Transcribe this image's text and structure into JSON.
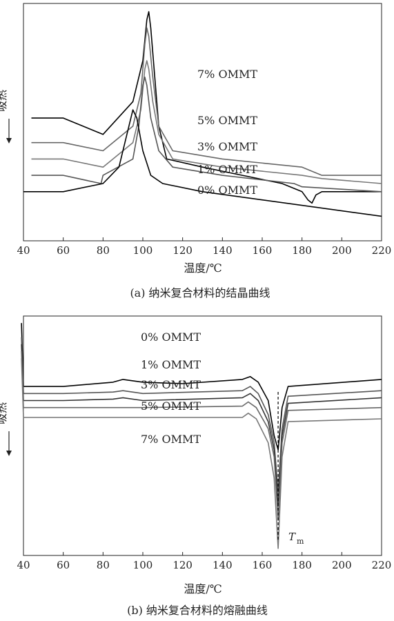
{
  "chart_data": [
    {
      "type": "line",
      "caption": "(a) 纳米复合材料的结晶曲线",
      "xlabel": "温度/℃",
      "ylabel": "吸热",
      "xlim": [
        40,
        220
      ],
      "xticks": [
        40,
        60,
        80,
        100,
        120,
        140,
        160,
        180,
        200,
        220
      ],
      "grid": false,
      "series": [
        {
          "name": "7% OMMT",
          "color": "#000000",
          "points": [
            [
              44,
              0.935
            ],
            [
              60,
              0.935
            ],
            [
              80,
              0.925
            ],
            [
              95,
              0.945
            ],
            [
              100,
              0.97
            ],
            [
              102,
              0.995
            ],
            [
              103,
              1.0
            ],
            [
              104,
              0.99
            ],
            [
              106,
              0.96
            ],
            [
              108,
              0.93
            ],
            [
              112,
              0.91
            ],
            [
              130,
              0.905
            ],
            [
              150,
              0.9
            ],
            [
              170,
              0.895
            ],
            [
              180,
              0.89
            ],
            [
              183,
              0.885
            ],
            [
              185,
              0.883
            ],
            [
              187,
              0.888
            ],
            [
              190,
              0.89
            ],
            [
              220,
              0.89
            ]
          ]
        },
        {
          "name": "5% OMMT",
          "color": "#666666",
          "points": [
            [
              44,
              0.92
            ],
            [
              60,
              0.92
            ],
            [
              80,
              0.915
            ],
            [
              95,
              0.93
            ],
            [
              99,
              0.95
            ],
            [
              101,
              0.98
            ],
            [
              102,
              0.99
            ],
            [
              103,
              0.985
            ],
            [
              105,
              0.96
            ],
            [
              108,
              0.93
            ],
            [
              115,
              0.915
            ],
            [
              140,
              0.91
            ],
            [
              180,
              0.905
            ],
            [
              190,
              0.9
            ],
            [
              220,
              0.9
            ]
          ]
        },
        {
          "name": "3% OMMT",
          "color": "#777777",
          "points": [
            [
              44,
              0.91
            ],
            [
              60,
              0.91
            ],
            [
              80,
              0.905
            ],
            [
              95,
              0.92
            ],
            [
              99,
              0.94
            ],
            [
              101,
              0.965
            ],
            [
              102,
              0.97
            ],
            [
              103,
              0.965
            ],
            [
              105,
              0.945
            ],
            [
              108,
              0.925
            ],
            [
              115,
              0.91
            ],
            [
              140,
              0.905
            ],
            [
              180,
              0.9
            ],
            [
              190,
              0.898
            ],
            [
              220,
              0.895
            ]
          ]
        },
        {
          "name": "1% OMMT",
          "color": "#555555",
          "points": [
            [
              44,
              0.9
            ],
            [
              60,
              0.9
            ],
            [
              79,
              0.895
            ],
            [
              80,
              0.9
            ],
            [
              95,
              0.91
            ],
            [
              98,
              0.93
            ],
            [
              100,
              0.955
            ],
            [
              101,
              0.96
            ],
            [
              102,
              0.955
            ],
            [
              104,
              0.935
            ],
            [
              108,
              0.915
            ],
            [
              115,
              0.905
            ],
            [
              140,
              0.9
            ],
            [
              176,
              0.895
            ],
            [
              180,
              0.893
            ],
            [
              220,
              0.89
            ]
          ]
        },
        {
          "name": "0% OMMT",
          "color": "#000000",
          "points": [
            [
              40,
              0.89
            ],
            [
              60,
              0.89
            ],
            [
              80,
              0.895
            ],
            [
              88,
              0.905
            ],
            [
              92,
              0.925
            ],
            [
              95,
              0.94
            ],
            [
              97,
              0.935
            ],
            [
              100,
              0.915
            ],
            [
              104,
              0.9
            ],
            [
              110,
              0.895
            ],
            [
              130,
              0.89
            ],
            [
              160,
              0.885
            ],
            [
              190,
              0.88
            ],
            [
              220,
              0.875
            ]
          ]
        }
      ]
    },
    {
      "type": "line",
      "caption": "(b) 纳米复合材料的熔融曲线",
      "xlabel": "温度/℃",
      "ylabel": "吸热",
      "xlim": [
        40,
        220
      ],
      "xticks": [
        40,
        60,
        80,
        100,
        120,
        140,
        160,
        180,
        200,
        220
      ],
      "grid": false,
      "annotation": {
        "text": "T",
        "subscript": "m",
        "x": 168
      },
      "series": [
        {
          "name": "0% OMMT",
          "color": "#000000",
          "points": [
            [
              39,
              1.0
            ],
            [
              40,
              0.955
            ],
            [
              45,
              0.955
            ],
            [
              60,
              0.955
            ],
            [
              85,
              0.958
            ],
            [
              90,
              0.96
            ],
            [
              100,
              0.958
            ],
            [
              120,
              0.957
            ],
            [
              150,
              0.96
            ],
            [
              154,
              0.962
            ],
            [
              158,
              0.958
            ],
            [
              163,
              0.945
            ],
            [
              166,
              0.92
            ],
            [
              168,
              0.91
            ],
            [
              170,
              0.94
            ],
            [
              173,
              0.955
            ],
            [
              220,
              0.96
            ]
          ]
        },
        {
          "name": "1% OMMT",
          "color": "#555555",
          "points": [
            [
              39,
              0.99
            ],
            [
              40,
              0.95
            ],
            [
              45,
              0.95
            ],
            [
              60,
              0.95
            ],
            [
              85,
              0.951
            ],
            [
              90,
              0.952
            ],
            [
              100,
              0.95
            ],
            [
              150,
              0.952
            ],
            [
              154,
              0.955
            ],
            [
              158,
              0.95
            ],
            [
              163,
              0.935
            ],
            [
              166,
              0.915
            ],
            [
              168,
              0.88
            ],
            [
              170,
              0.925
            ],
            [
              173,
              0.948
            ],
            [
              220,
              0.952
            ]
          ]
        },
        {
          "name": "3% OMMT",
          "color": "#333333",
          "points": [
            [
              39,
              0.985
            ],
            [
              40,
              0.945
            ],
            [
              45,
              0.945
            ],
            [
              60,
              0.945
            ],
            [
              85,
              0.946
            ],
            [
              90,
              0.947
            ],
            [
              100,
              0.945
            ],
            [
              150,
              0.947
            ],
            [
              154,
              0.95
            ],
            [
              158,
              0.945
            ],
            [
              163,
              0.93
            ],
            [
              166,
              0.91
            ],
            [
              168,
              0.87
            ],
            [
              170,
              0.92
            ],
            [
              173,
              0.943
            ],
            [
              220,
              0.947
            ]
          ]
        },
        {
          "name": "5% OMMT",
          "color": "#666666",
          "points": [
            [
              39,
              0.98
            ],
            [
              40,
              0.94
            ],
            [
              45,
              0.94
            ],
            [
              60,
              0.94
            ],
            [
              100,
              0.94
            ],
            [
              150,
              0.941
            ],
            [
              153,
              0.944
            ],
            [
              157,
              0.94
            ],
            [
              163,
              0.925
            ],
            [
              166,
              0.905
            ],
            [
              168,
              0.86
            ],
            [
              170,
              0.915
            ],
            [
              173,
              0.938
            ],
            [
              220,
              0.94
            ]
          ]
        },
        {
          "name": "7% OMMT",
          "color": "#777777",
          "points": [
            [
              39,
              0.975
            ],
            [
              40,
              0.933
            ],
            [
              45,
              0.933
            ],
            [
              60,
              0.933
            ],
            [
              100,
              0.933
            ],
            [
              150,
              0.933
            ],
            [
              153,
              0.936
            ],
            [
              157,
              0.932
            ],
            [
              163,
              0.915
            ],
            [
              166,
              0.89
            ],
            [
              168,
              0.84
            ],
            [
              170,
              0.905
            ],
            [
              173,
              0.93
            ],
            [
              220,
              0.932
            ]
          ]
        }
      ]
    }
  ],
  "colors": {
    "axis": "#222222",
    "background": "#ffffff"
  }
}
